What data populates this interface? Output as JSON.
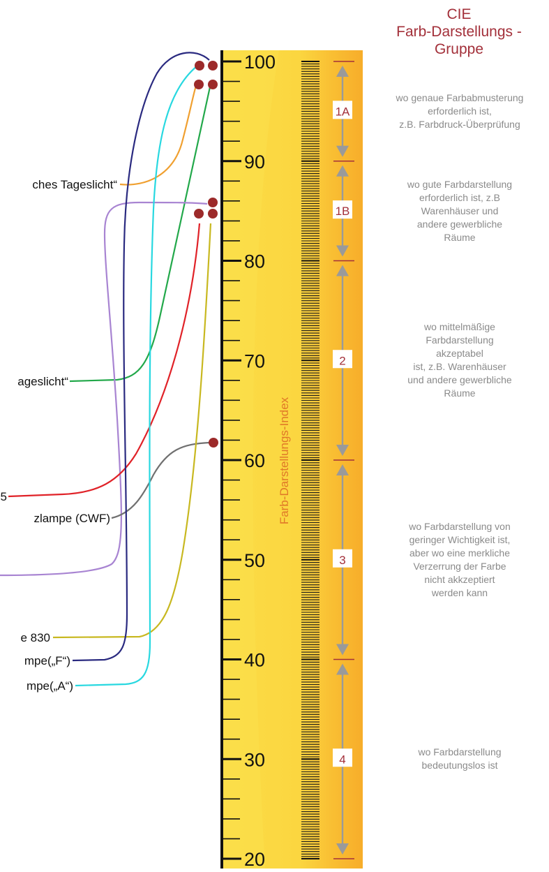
{
  "header": {
    "line1": "CIE",
    "line2": "Farb-Darstellungs -",
    "line3": "Gruppe"
  },
  "axis": {
    "label": "Farb-Darstellungs-Index",
    "min": 20,
    "max": 100,
    "major_ticks": [
      "100",
      "90",
      "80",
      "70",
      "60",
      "50",
      "40",
      "30",
      "20"
    ]
  },
  "groups": [
    {
      "label": "1A",
      "from": 90,
      "to": 100,
      "desc": [
        "wo genaue Farbabmusterung",
        "erforderlich ist,",
        "z.B. Farbdruck-Überprüfung"
      ]
    },
    {
      "label": "1B",
      "from": 80,
      "to": 90,
      "desc": [
        "wo gute Farbdarstellung",
        "erforderlich ist, z.B",
        "Warenhäuser und",
        "andere gewerbliche",
        "Räume"
      ]
    },
    {
      "label": "2",
      "from": 60,
      "to": 80,
      "desc": [
        "wo mittelmäßige",
        "Farbdarstellung",
        "akzeptabel",
        "ist, z.B. Warenhäuser",
        "und andere gewerbliche",
        "Räume"
      ]
    },
    {
      "label": "3",
      "from": 40,
      "to": 60,
      "desc": [
        "wo Farbdarstellung von",
        "geringer Wichtigkeit ist,",
        "aber wo eine merkliche",
        "Verzerrung der Farbe",
        "nicht akkzeptiert",
        "werden kann"
      ]
    },
    {
      "label": "4",
      "from": 20,
      "to": 40,
      "desc": [
        "wo Farbdarstellung",
        "bedeutungslos ist"
      ]
    }
  ],
  "lamps": [
    {
      "label": "ches Tageslicht“",
      "color": "#f0a030",
      "value": 98
    },
    {
      "label": "ageslicht“",
      "color": "#22a84a",
      "value": 98
    },
    {
      "label": "",
      "color": "#a884d2",
      "value": 86
    },
    {
      "label": "5",
      "color": "#e02228",
      "value": 85
    },
    {
      "label": "zlampe (CWF)",
      "color": "#707070",
      "value": 62
    },
    {
      "label": "e 830",
      "color": "#c8b820",
      "value": 85
    },
    {
      "label": "mpe(„F“)",
      "color": "#2a2a80",
      "value": 100
    },
    {
      "label": "mpe(„A“)",
      "color": "#28d8e0",
      "value": 100
    }
  ],
  "colors": {
    "accent": "#a3303a",
    "dot": "#9c2a2a",
    "ruler_light": "#fbdc46",
    "ruler_dark": "#f7ad2a",
    "arrow": "#9a9a9a",
    "text_gray": "#8a8a8a"
  }
}
